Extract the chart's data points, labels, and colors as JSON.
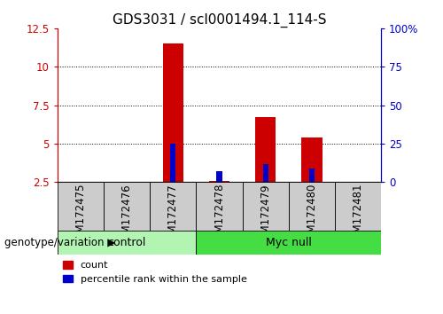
{
  "title": "GDS3031 / scl0001494.1_114-S",
  "samples": [
    "GSM172475",
    "GSM172476",
    "GSM172477",
    "GSM172478",
    "GSM172479",
    "GSM172480",
    "GSM172481"
  ],
  "count_values": [
    0,
    0,
    11.5,
    2.5,
    6.7,
    5.4,
    0
  ],
  "percentile_values": [
    0,
    0,
    5.0,
    3.2,
    3.7,
    3.4,
    0
  ],
  "count_color": "#cc0000",
  "percentile_color": "#0000cc",
  "bar_width": 0.45,
  "ylim_left": [
    2.5,
    12.5
  ],
  "ylim_right": [
    0,
    100
  ],
  "yticks_left": [
    2.5,
    5.0,
    7.5,
    10.0,
    12.5
  ],
  "yticks_right": [
    0,
    25,
    50,
    75,
    100
  ],
  "ytick_labels_left": [
    "2.5",
    "5",
    "7.5",
    "10",
    "12.5"
  ],
  "ytick_labels_right": [
    "0",
    "25",
    "50",
    "75",
    "100%"
  ],
  "grid_ticks": [
    5.0,
    7.5,
    10.0
  ],
  "control_color_light": "#b2f5b2",
  "control_color_dark": "#44dd44",
  "legend_items": [
    {
      "label": "count",
      "color": "#cc0000"
    },
    {
      "label": "percentile rank within the sample",
      "color": "#0000cc"
    }
  ],
  "left_axis_color": "#cc0000",
  "right_axis_color": "#0000cc",
  "background_color": "#ffffff",
  "plot_bg_color": "#ffffff",
  "grid_color": "#000000",
  "title_fontsize": 11,
  "tick_fontsize": 8.5,
  "percentile_bar_width": 0.12,
  "genotype_label": "genotype/variation",
  "gray_box_color": "#cccccc",
  "control_n": 3,
  "myc_null_n": 4
}
